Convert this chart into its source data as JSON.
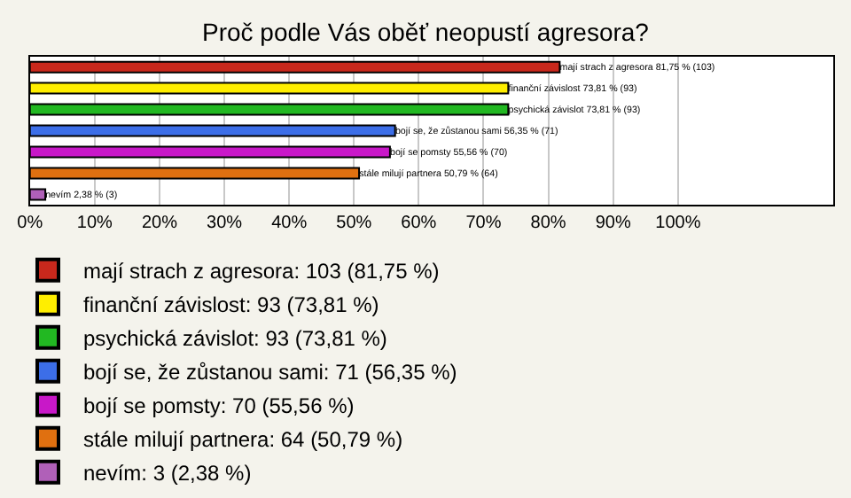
{
  "chart_data": {
    "type": "bar",
    "orientation": "horizontal",
    "title": "Proč podle Vás oběť neopustí agresora?",
    "categories": [
      null,
      null,
      null,
      null,
      null,
      null,
      null
    ],
    "series": [
      {
        "name": "mají strach z agresora: 103 (81,75 %)",
        "color": "#c8281c",
        "values": [
          81.75,
          null,
          null,
          null,
          null,
          null,
          null
        ],
        "value_labels": [
          "mají strach z agresora 81,75 % (103)",
          null,
          null,
          null,
          null,
          null,
          null
        ]
      },
      {
        "name": "finanční závislost: 93 (73,81 %)",
        "color": "#ffee00",
        "values": [
          null,
          73.81,
          null,
          null,
          null,
          null,
          null
        ],
        "value_labels": [
          null,
          "finanční závislost 73,81 % (93)",
          null,
          null,
          null,
          null,
          null
        ]
      },
      {
        "name": "psychická závislot: 93 (73,81 %)",
        "color": "#22b822",
        "values": [
          null,
          null,
          73.81,
          null,
          null,
          null,
          null
        ],
        "value_labels": [
          null,
          null,
          "psychická závislot 73,81 % (93)",
          null,
          null,
          null,
          null
        ]
      },
      {
        "name": "bojí se, že zůstanou sami: 71 (56,35 %)",
        "color": "#3c6ee8",
        "values": [
          null,
          null,
          null,
          56.35,
          null,
          null,
          null
        ],
        "value_labels": [
          null,
          null,
          null,
          "bojí se, že zůstanou sami 56,35 % (71)",
          null,
          null,
          null
        ]
      },
      {
        "name": "bojí se pomsty: 70 (55,56 %)",
        "color": "#c818c8",
        "values": [
          null,
          null,
          null,
          null,
          55.56,
          null,
          null
        ],
        "value_labels": [
          null,
          null,
          null,
          null,
          "bojí se pomsty 55,56 % (70)",
          null,
          null
        ]
      },
      {
        "name": "stále milují partnera: 64 (50,79 %)",
        "color": "#e07010",
        "values": [
          null,
          null,
          null,
          null,
          null,
          50.79,
          null
        ],
        "value_labels": [
          null,
          null,
          null,
          null,
          null,
          "stále milují partnera 50,79 % (64)",
          null
        ]
      },
      {
        "name": "nevím: 3 (2,38 %)",
        "color": "#b060b8",
        "values": [
          null,
          null,
          null,
          null,
          null,
          null,
          2.38
        ],
        "value_labels": [
          null,
          null,
          null,
          null,
          null,
          null,
          "nevím 2,38 % (3)"
        ]
      }
    ],
    "xlim": [
      0,
      124
    ],
    "xticks": [
      {
        "value": 0,
        "label": "0%"
      },
      {
        "value": 10,
        "label": "10%"
      },
      {
        "value": 20,
        "label": "20%"
      },
      {
        "value": 30,
        "label": "30%"
      },
      {
        "value": 40,
        "label": "40%"
      },
      {
        "value": 50,
        "label": "50%"
      },
      {
        "value": 60,
        "label": "60%"
      },
      {
        "value": 70,
        "label": "70%"
      },
      {
        "value": 80,
        "label": "80%"
      },
      {
        "value": 90,
        "label": "90%"
      },
      {
        "value": 100,
        "label": "100%"
      }
    ],
    "grid": "x",
    "tick_labels": "x",
    "legend": "bottom left"
  }
}
